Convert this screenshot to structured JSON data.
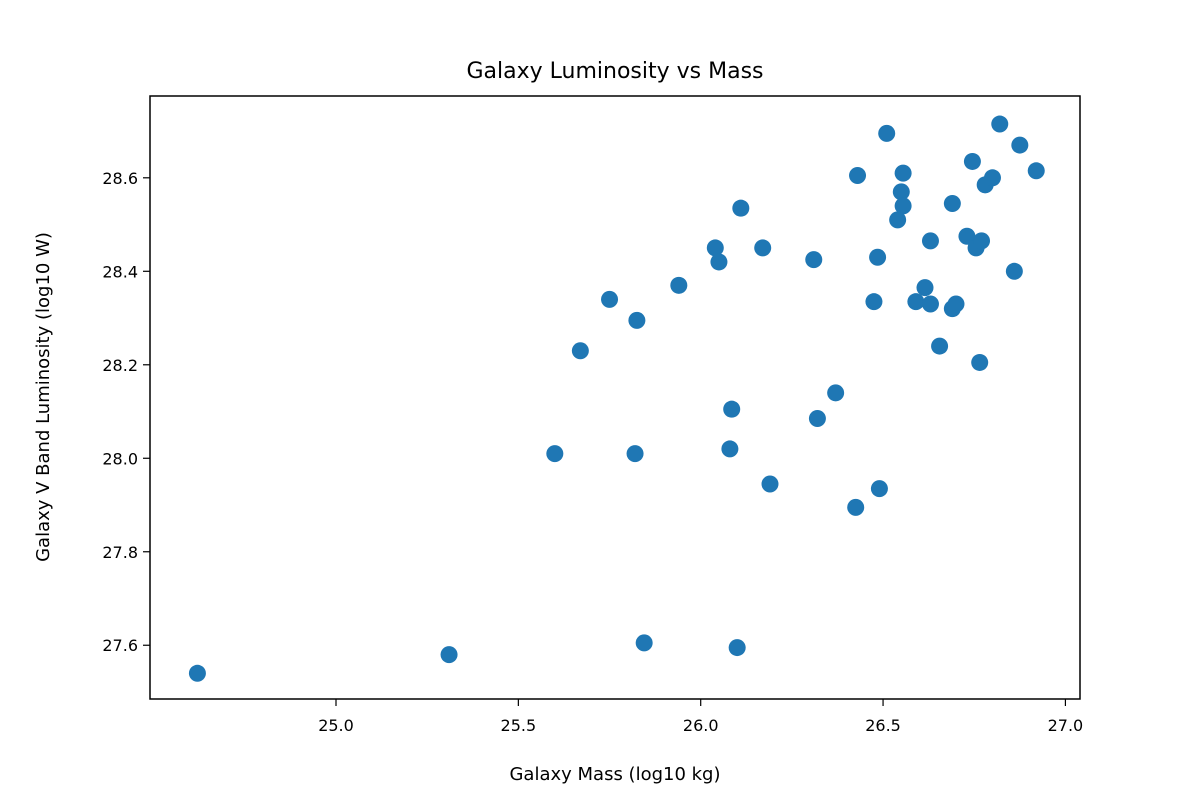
{
  "chart_data": {
    "type": "scatter",
    "title": "Galaxy Luminosity vs Mass",
    "xlabel": "Galaxy Mass (log10 kg)",
    "ylabel": "Galaxy V Band Luminosity (log10 W)",
    "xlim": [
      24.49,
      27.04
    ],
    "ylim": [
      27.485,
      28.775
    ],
    "xticks": [
      "25.0",
      "25.5",
      "26.0",
      "26.5",
      "27.0"
    ],
    "yticks": [
      "27.6",
      "27.8",
      "28.0",
      "28.2",
      "28.4",
      "28.6"
    ],
    "grid": false,
    "color": "#1f77b4",
    "series": [
      {
        "x": [
          24.62,
          25.31,
          25.6,
          25.82,
          25.845,
          26.1,
          26.08,
          26.19,
          26.425,
          26.49,
          25.67,
          25.75,
          25.825,
          25.94,
          26.04,
          26.05,
          26.11,
          26.17,
          26.31,
          26.32,
          26.37,
          26.43,
          26.475,
          26.485,
          26.51,
          26.54,
          26.55,
          26.555,
          26.555,
          26.59,
          26.615,
          26.63,
          26.63,
          26.655,
          26.69,
          26.69,
          26.7,
          26.73,
          26.745,
          26.755,
          26.765,
          26.77,
          26.78,
          26.8,
          26.82,
          26.86,
          26.875,
          26.92,
          26.085
        ],
        "y": [
          27.54,
          27.58,
          28.01,
          28.01,
          27.605,
          27.595,
          28.02,
          27.945,
          27.895,
          27.935,
          28.23,
          28.34,
          28.295,
          28.37,
          28.45,
          28.42,
          28.535,
          28.45,
          28.425,
          28.085,
          28.14,
          28.605,
          28.335,
          28.43,
          28.695,
          28.51,
          28.57,
          28.54,
          28.61,
          28.335,
          28.365,
          28.33,
          28.465,
          28.24,
          28.32,
          28.545,
          28.33,
          28.475,
          28.635,
          28.45,
          28.205,
          28.465,
          28.585,
          28.6,
          28.715,
          28.4,
          28.67,
          28.615,
          28.105
        ]
      }
    ]
  }
}
